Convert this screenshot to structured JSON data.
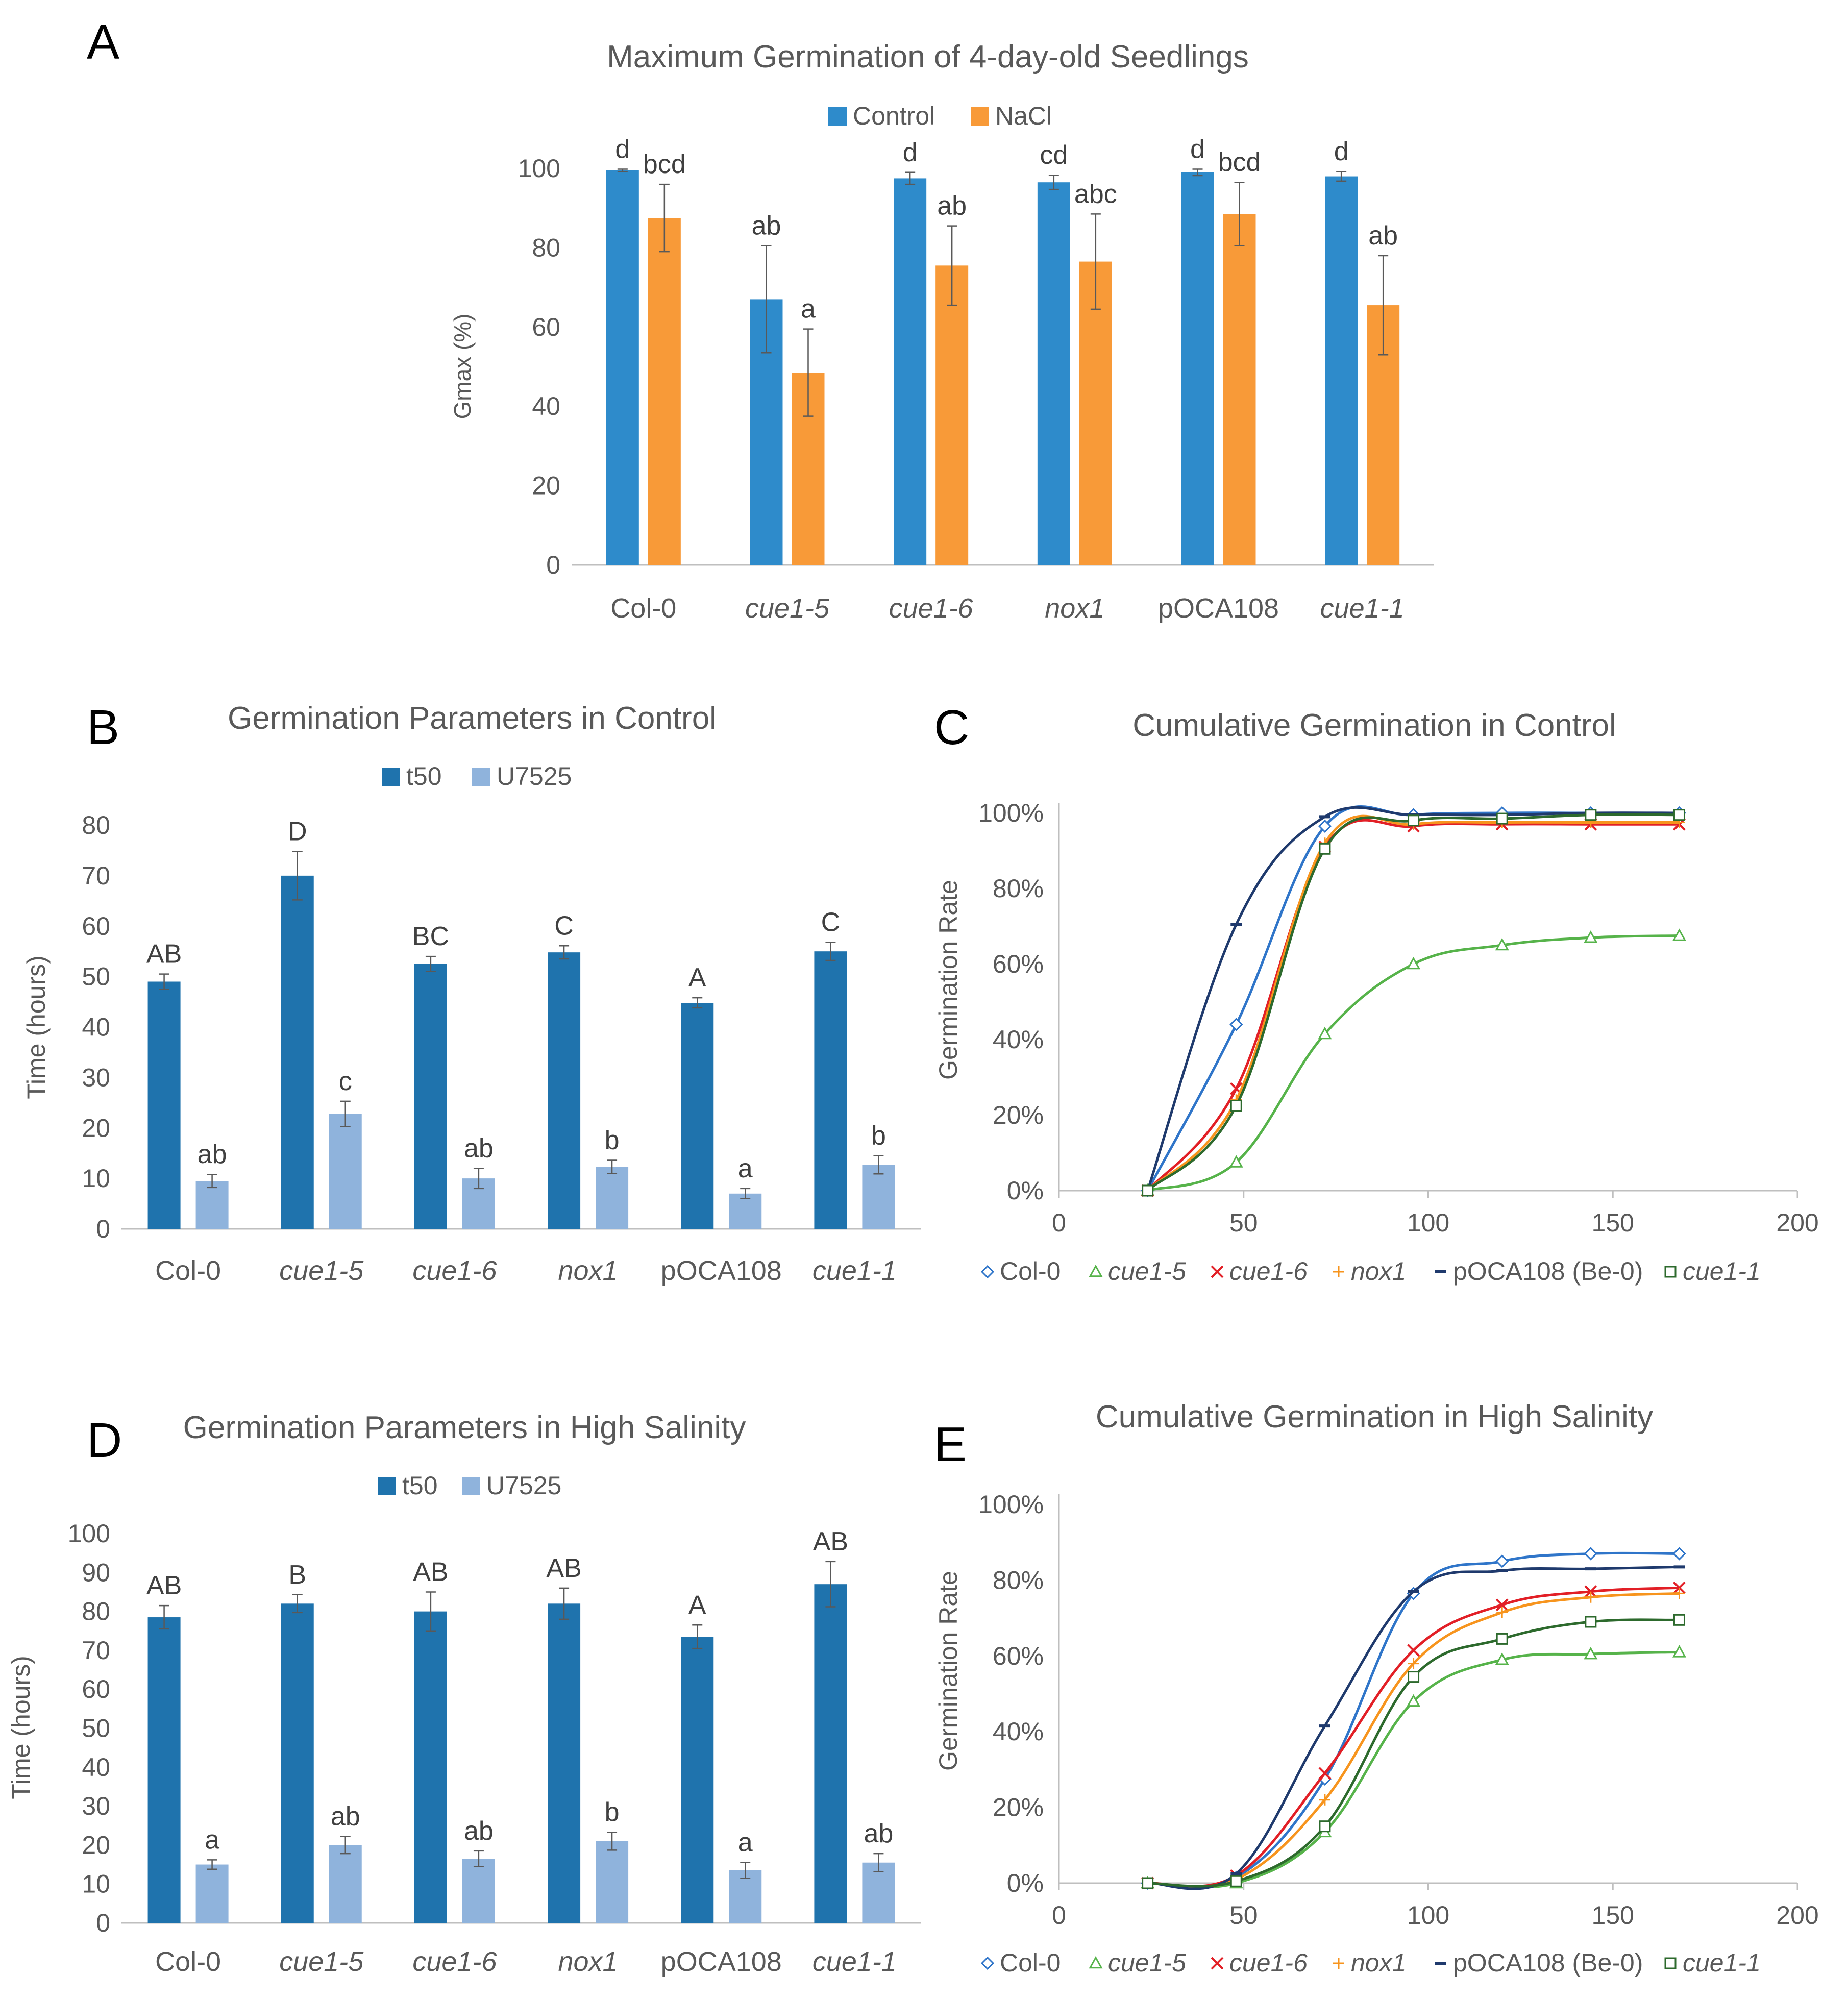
{
  "colors": {
    "control_a": "#2E8BCB",
    "nacl": "#F89A38",
    "t50": "#1F73AD",
    "u7525": "#8FB3DC",
    "col0": "#2F75C9",
    "cue1_5": "#56B34A",
    "cue1_6": "#E21F26",
    "nox1": "#F7941D",
    "pOCA108": "#1F3A6D",
    "cue1_1": "#2D6A2D"
  },
  "chart_data": [
    {
      "id": "A",
      "panel_label": "A",
      "type": "bar",
      "title": "Maximum Germination of 4-day-old Seedlings",
      "ylabel": "Gmax (%)",
      "xlabel": "",
      "ylim": [
        0,
        100
      ],
      "yticks": [
        "0",
        "20",
        "40",
        "60",
        "80",
        "100"
      ],
      "legend_position": "top-center",
      "categories": [
        "Col-0",
        "cue1-5",
        "cue1-6",
        "nox1",
        "pOCA108",
        "cue1-1"
      ],
      "italic_categories": [
        false,
        true,
        true,
        true,
        false,
        true
      ],
      "series": [
        {
          "name": "Control",
          "values": [
            99.5,
            67,
            97.5,
            96.5,
            99,
            98
          ],
          "errors": [
            0.3,
            13.5,
            1.5,
            1.8,
            0.8,
            1.2
          ],
          "labels": [
            "d",
            "ab",
            "d",
            "cd",
            "d",
            "d"
          ]
        },
        {
          "name": "NaCl",
          "values": [
            87.5,
            48.5,
            75.5,
            76.5,
            88.5,
            65.5
          ],
          "errors": [
            8.5,
            11,
            10,
            12,
            8,
            12.5
          ],
          "labels": [
            "bcd",
            "a",
            "ab",
            "abc",
            "bcd",
            "ab"
          ]
        }
      ]
    },
    {
      "id": "B",
      "panel_label": "B",
      "type": "bar",
      "title": "Germination Parameters in Control",
      "ylabel": "Time (hours)",
      "xlabel": "",
      "ylim": [
        0,
        80
      ],
      "yticks": [
        "0",
        "10",
        "20",
        "30",
        "40",
        "50",
        "60",
        "70",
        "80"
      ],
      "legend_position": "top-center",
      "categories": [
        "Col-0",
        "cue1-5",
        "cue1-6",
        "nox1",
        "pOCA108",
        "cue1-1"
      ],
      "italic_categories": [
        false,
        true,
        true,
        true,
        false,
        true
      ],
      "series": [
        {
          "name": "t50",
          "values": [
            49,
            70,
            52.5,
            54.8,
            44.8,
            55
          ],
          "errors": [
            1.5,
            4.8,
            1.5,
            1.3,
            1.0,
            1.8
          ],
          "labels": [
            "AB",
            "D",
            "BC",
            "C",
            "A",
            "C"
          ]
        },
        {
          "name": "U7525",
          "values": [
            9.5,
            22.8,
            10,
            12.3,
            7,
            12.7
          ],
          "errors": [
            1.3,
            2.5,
            2,
            1.3,
            1.0,
            1.8
          ],
          "labels": [
            "ab",
            "c",
            "ab",
            "b",
            "a",
            "b"
          ]
        }
      ]
    },
    {
      "id": "C",
      "panel_label": "C",
      "type": "line",
      "title": "Cumulative Germination in Control",
      "ylabel": "Germination  Rate",
      "xlabel": "",
      "xlim": [
        0,
        200
      ],
      "ylim": [
        0,
        100
      ],
      "xticks": [
        "0",
        "50",
        "100",
        "150",
        "200"
      ],
      "yticks": [
        "0%",
        "20%",
        "40%",
        "60%",
        "80%",
        "100%"
      ],
      "legend_position": "bottom",
      "x": [
        24,
        48,
        72,
        96,
        120,
        144,
        168
      ],
      "series": [
        {
          "name": "Col-0",
          "marker": "diamond",
          "values": [
            0,
            44,
            96.5,
            99.5,
            100,
            100,
            100
          ]
        },
        {
          "name": "cue1-5",
          "marker": "triangle",
          "values": [
            0,
            7.5,
            41.5,
            60,
            65,
            67,
            67.5
          ]
        },
        {
          "name": "cue1-6",
          "marker": "x",
          "values": [
            0,
            27,
            91,
            96.5,
            97,
            97,
            97
          ]
        },
        {
          "name": "nox1",
          "marker": "plus",
          "values": [
            0,
            24,
            92,
            97,
            97.5,
            97.5,
            97.5
          ]
        },
        {
          "name": "pOCA108 (Be-0)",
          "marker": "dash",
          "values": [
            0,
            70.5,
            99,
            99.5,
            99.5,
            100,
            100
          ]
        },
        {
          "name": "cue1-1",
          "marker": "square",
          "values": [
            0,
            22.5,
            90.5,
            98,
            98.5,
            99.5,
            99.5
          ]
        }
      ]
    },
    {
      "id": "D",
      "panel_label": "D",
      "type": "bar",
      "title": "Germination Parameters in High Salinity",
      "ylabel": "Time (hours)",
      "xlabel": "",
      "ylim": [
        0,
        100
      ],
      "yticks": [
        "0",
        "10",
        "20",
        "30",
        "40",
        "50",
        "60",
        "70",
        "80",
        "90",
        "100"
      ],
      "legend_position": "top-center",
      "categories": [
        "Col-0",
        "cue1-5",
        "cue1-6",
        "nox1",
        "pOCA108",
        "cue1-1"
      ],
      "italic_categories": [
        false,
        true,
        true,
        true,
        false,
        true
      ],
      "series": [
        {
          "name": "t50",
          "values": [
            78.5,
            82,
            80,
            82,
            73.5,
            87
          ],
          "errors": [
            3.0,
            2.3,
            5.0,
            4.0,
            3.0,
            5.8
          ],
          "labels": [
            "AB",
            "B",
            "AB",
            "AB",
            "A",
            "AB"
          ]
        },
        {
          "name": "U7525",
          "values": [
            15,
            20,
            16.5,
            21,
            13.5,
            15.5
          ],
          "errors": [
            1.2,
            2.2,
            2.0,
            2.3,
            2.0,
            2.3
          ],
          "labels": [
            "a",
            "ab",
            "ab",
            "b",
            "a",
            "ab"
          ]
        }
      ]
    },
    {
      "id": "E",
      "panel_label": "E",
      "type": "line",
      "title": "Cumulative Germination in High Salinity",
      "ylabel": "Germination Rate",
      "xlabel": "",
      "xlim": [
        0,
        200
      ],
      "ylim": [
        0,
        100
      ],
      "xticks": [
        "0",
        "50",
        "100",
        "150",
        "200"
      ],
      "yticks": [
        "0%",
        "20%",
        "40%",
        "60%",
        "80%",
        "100%"
      ],
      "legend_position": "bottom",
      "x": [
        24,
        48,
        72,
        96,
        120,
        144,
        168
      ],
      "series": [
        {
          "name": "Col-0",
          "marker": "diamond",
          "values": [
            0,
            1.5,
            27.5,
            76.5,
            85,
            87,
            87
          ]
        },
        {
          "name": "cue1-5",
          "marker": "triangle",
          "values": [
            0,
            0,
            13.5,
            48,
            59,
            60.5,
            61
          ]
        },
        {
          "name": "cue1-6",
          "marker": "x",
          "values": [
            0,
            2,
            29,
            61.5,
            73.5,
            77,
            78
          ]
        },
        {
          "name": "nox1",
          "marker": "plus",
          "values": [
            0,
            1,
            22,
            58,
            71.5,
            75.5,
            76.5
          ]
        },
        {
          "name": "pOCA108 (Be-0)",
          "marker": "dash",
          "values": [
            0,
            2.5,
            41.5,
            77,
            82.5,
            83,
            83.5
          ]
        },
        {
          "name": "cue1-1",
          "marker": "square",
          "values": [
            0,
            0.5,
            15,
            54.5,
            64.5,
            69,
            69.5
          ]
        }
      ]
    }
  ]
}
